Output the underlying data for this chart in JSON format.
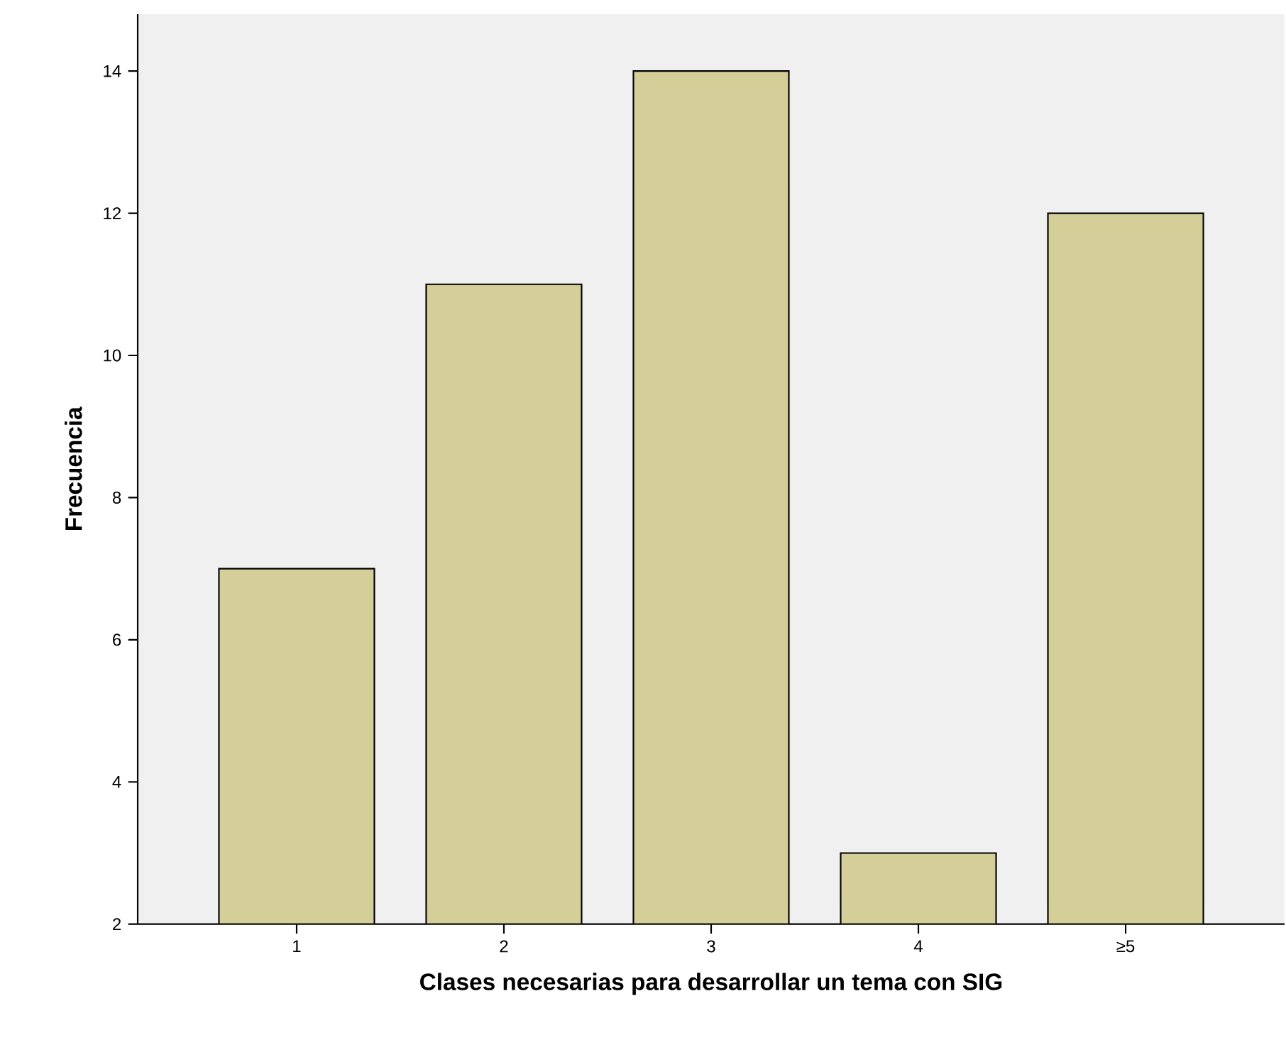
{
  "chart_data": {
    "type": "bar",
    "xlabel": "Clases necesarias para desarrollar un tema con SIG",
    "ylabel": "Frecuencia",
    "categories": [
      "1",
      "2",
      "3",
      "4",
      "≥5"
    ],
    "values": [
      7,
      11,
      14,
      3,
      12
    ],
    "color": "#d4cf98",
    "ylim": [
      2,
      14.8
    ],
    "yticks": [
      2,
      4,
      6,
      8,
      10,
      12,
      14
    ],
    "grid": false
  }
}
